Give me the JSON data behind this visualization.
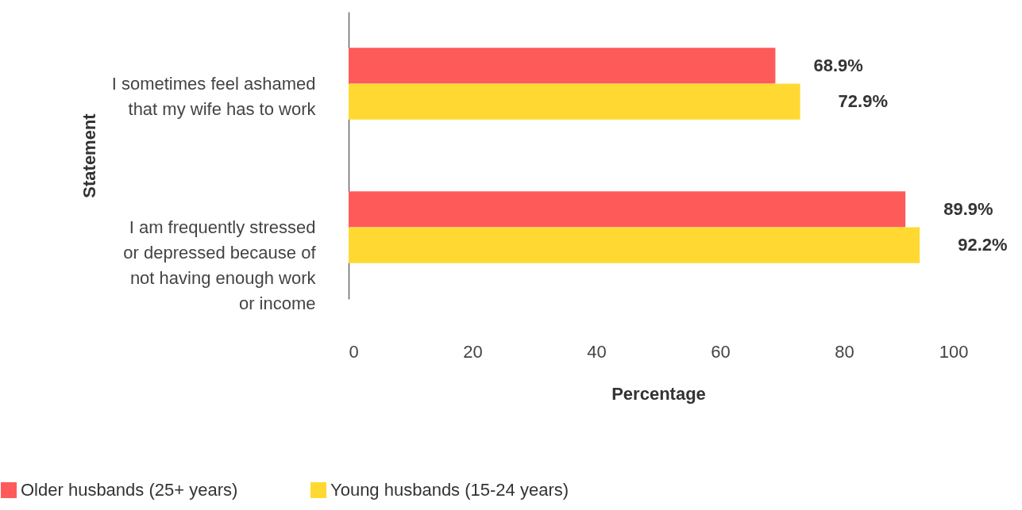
{
  "chart_data": {
    "type": "bar",
    "orientation": "horizontal",
    "xlabel": "Percentage",
    "ylabel": "Statement",
    "categories": [
      "I sometimes feel ashamed that my wife has to work",
      "I am frequently stressed or depressed because of not having enough work or income"
    ],
    "series": [
      {
        "name": "Older husbands (25+ years)",
        "color": "#ff5a5a",
        "values": [
          68.9,
          89.9
        ],
        "value_labels": [
          "68.9%",
          "89.9%"
        ]
      },
      {
        "name": "Young husbands (15-24 years)",
        "color": "#ffd932",
        "values": [
          72.9,
          92.2
        ],
        "value_labels": [
          "72.9%",
          "92.2%"
        ]
      }
    ],
    "xlim": [
      0,
      100
    ],
    "xticks": [
      0,
      20,
      40,
      60,
      80,
      100
    ],
    "grid": false,
    "legend": "bottom left"
  }
}
